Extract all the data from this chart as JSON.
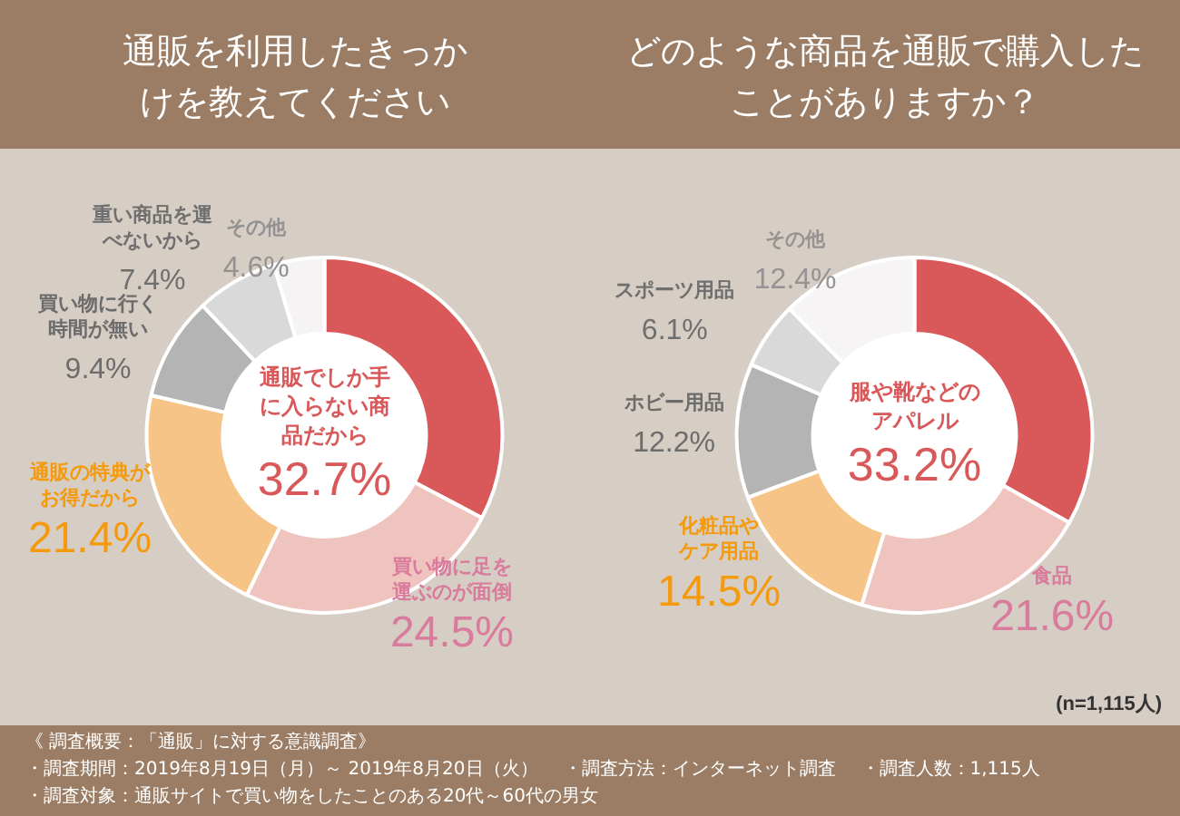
{
  "chart_data": [
    {
      "type": "donut",
      "title": "通販を利用したきっかけを教えてください",
      "categories": [
        "通販でしか手に入らない商品だから",
        "買い物に足を運ぶのが面倒",
        "通販の特典がお得だから",
        "買い物に行く時間が無い",
        "重い商品を運べないから",
        "その他"
      ],
      "values": [
        32.7,
        24.5,
        21.4,
        9.4,
        7.4,
        4.6
      ],
      "value_labels": [
        "32.7%",
        "24.5%",
        "21.4%",
        "9.4%",
        "7.4%",
        "4.6%"
      ],
      "colors": [
        "#d9595a",
        "#efc4bf",
        "#f6c487",
        "#b4b4b4",
        "#d9d9d9",
        "#f5f3f3"
      ],
      "annotations": [
        "《 調査概要：「通販」に対する意識調査》",
        "・調査期間：2019年8月19日（月）～ 2019年8月20日（火）",
        "・調査方法：インターネット調査",
        "・調査人数：1,115人",
        "・調査対象：通販サイトで買い物をしたことのある20代～60代の男女"
      ]
    },
    {
      "type": "donut",
      "title": "どのような商品を通販で購入したことがありますか？",
      "categories": [
        "服や靴などのアパレル",
        "食品",
        "化粧品やケア用品",
        "ホビー用品",
        "スポーツ用品",
        "その他"
      ],
      "values": [
        33.2,
        21.6,
        14.5,
        12.2,
        6.1,
        12.4
      ],
      "value_labels": [
        "33.2%",
        "21.6%",
        "14.5%",
        "12.2%",
        "6.1%",
        "12.4%"
      ],
      "colors": [
        "#d9595a",
        "#efc4bf",
        "#f6c487",
        "#b4b4b4",
        "#d9d9d9",
        "#f6f4f5"
      ],
      "annotations": [
        "(n=1,115人)"
      ]
    }
  ]
}
